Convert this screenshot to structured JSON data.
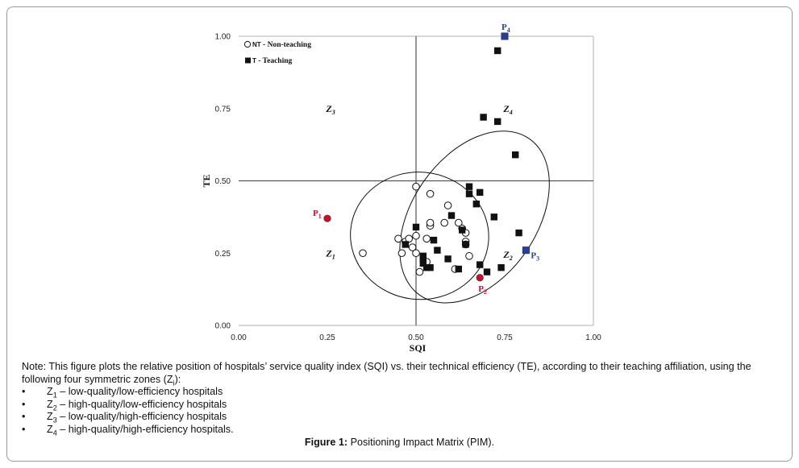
{
  "chart_data": {
    "type": "scatter",
    "title": "",
    "xlabel": "SQI",
    "ylabel": "TE",
    "xlim": [
      0,
      1
    ],
    "ylim": [
      0,
      1
    ],
    "xticks": [
      "0.00",
      "0.25",
      "0.50",
      "0.75",
      "1.00"
    ],
    "yticks": [
      "0.00",
      "0.25",
      "0.50",
      "0.75",
      "1.00"
    ],
    "grid": false,
    "legend": "top-left",
    "legend_entries": [
      {
        "marker": "NT",
        "label": " - Non-teaching"
      },
      {
        "marker": "T",
        "label": "  - Teaching"
      }
    ],
    "reference_lines": {
      "x": 0.5,
      "y": 0.5
    },
    "zones": [
      {
        "letter": "Z",
        "sub": "3",
        "x": 0.26,
        "y": 0.75
      },
      {
        "letter": "Z",
        "sub": "4",
        "x": 0.76,
        "y": 0.75
      },
      {
        "letter": "Z",
        "sub": "1",
        "x": 0.26,
        "y": 0.25
      },
      {
        "letter": "Z",
        "sub": "2",
        "x": 0.76,
        "y": 0.245
      }
    ],
    "ellipses": [
      {
        "cx": 0.51,
        "cy": 0.31,
        "rx": 0.195,
        "ry": 0.22,
        "rotation": 5
      },
      {
        "cx": 0.665,
        "cy": 0.375,
        "rx": 0.175,
        "ry": 0.33,
        "rotation": 35
      }
    ],
    "series": [
      {
        "name": "Non-teaching",
        "marker": "open-circle",
        "points": [
          [
            0.35,
            0.25
          ],
          [
            0.45,
            0.3
          ],
          [
            0.46,
            0.25
          ],
          [
            0.47,
            0.29
          ],
          [
            0.48,
            0.3
          ],
          [
            0.49,
            0.27
          ],
          [
            0.5,
            0.31
          ],
          [
            0.5,
            0.25
          ],
          [
            0.5,
            0.48
          ],
          [
            0.51,
            0.185
          ],
          [
            0.53,
            0.22
          ],
          [
            0.54,
            0.345
          ],
          [
            0.54,
            0.355
          ],
          [
            0.54,
            0.455
          ],
          [
            0.58,
            0.355
          ],
          [
            0.59,
            0.415
          ],
          [
            0.61,
            0.195
          ],
          [
            0.62,
            0.355
          ],
          [
            0.63,
            0.335
          ],
          [
            0.64,
            0.32
          ],
          [
            0.64,
            0.29
          ],
          [
            0.64,
            0.28
          ],
          [
            0.65,
            0.24
          ],
          [
            0.53,
            0.3
          ]
        ]
      },
      {
        "name": "Teaching",
        "marker": "filled-square",
        "points": [
          [
            0.47,
            0.28
          ],
          [
            0.5,
            0.34
          ],
          [
            0.52,
            0.24
          ],
          [
            0.52,
            0.23
          ],
          [
            0.52,
            0.215
          ],
          [
            0.53,
            0.2
          ],
          [
            0.54,
            0.2
          ],
          [
            0.55,
            0.295
          ],
          [
            0.56,
            0.26
          ],
          [
            0.59,
            0.23
          ],
          [
            0.6,
            0.38
          ],
          [
            0.62,
            0.195
          ],
          [
            0.63,
            0.33
          ],
          [
            0.64,
            0.28
          ],
          [
            0.65,
            0.48
          ],
          [
            0.65,
            0.455
          ],
          [
            0.67,
            0.42
          ],
          [
            0.68,
            0.46
          ],
          [
            0.68,
            0.21
          ],
          [
            0.69,
            0.72
          ],
          [
            0.7,
            0.185
          ],
          [
            0.72,
            0.375
          ],
          [
            0.73,
            0.705
          ],
          [
            0.73,
            0.95
          ],
          [
            0.74,
            0.2
          ],
          [
            0.78,
            0.59
          ],
          [
            0.79,
            0.32
          ]
        ]
      }
    ],
    "highlights": [
      {
        "label": "P",
        "sub": "1",
        "x": 0.25,
        "y": 0.37,
        "marker": "circle",
        "color": "#c8102e"
      },
      {
        "label": "P",
        "sub": "2",
        "x": 0.68,
        "y": 0.165,
        "marker": "circle",
        "color": "#c8102e"
      },
      {
        "label": "P",
        "sub": "3",
        "x": 0.81,
        "y": 0.26,
        "marker": "square",
        "color": "#2b3f8c"
      },
      {
        "label": "P",
        "sub": "4",
        "x": 0.75,
        "y": 1.0,
        "marker": "square",
        "color": "#2b3f8c"
      }
    ]
  },
  "note": {
    "intro_before": "Note: This figure plots the relative position of hospitals’ service quality index (SQI) vs. their technical efficiency (TE), according to their teaching affiliation, using the following four symmetric zones (Z",
    "intro_sub": "i",
    "intro_after": "):",
    "bullet": "•",
    "items": [
      {
        "letter": "Z",
        "sub": "1",
        "text": " – low-quality/low-efficiency hospitals"
      },
      {
        "letter": "Z",
        "sub": "2",
        "text": " – high-quality/low-efficiency hospitals"
      },
      {
        "letter": "Z",
        "sub": "3",
        "text": " – low-quality/high-efficiency hospitals"
      },
      {
        "letter": "Z",
        "sub": "4",
        "text": " – high-quality/high-efficiency hospitals."
      }
    ]
  },
  "caption": {
    "label": "Figure 1:",
    "text": " Positioning Impact Matrix (PIM)."
  },
  "colors": {
    "axis": "#b0b0b0",
    "reference": "#555555",
    "marker": "#111111",
    "red": "#c8102e",
    "blue": "#2b3f8c"
  }
}
